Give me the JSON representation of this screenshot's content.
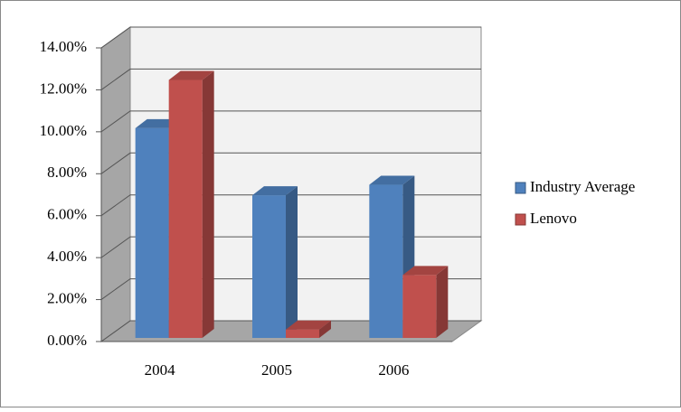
{
  "chart_data": {
    "type": "bar3d",
    "categories": [
      "2004",
      "2005",
      "2006"
    ],
    "series": [
      {
        "name": "Industry Average",
        "color": "#4f81bd",
        "values": [
          10.0,
          6.8,
          7.3
        ]
      },
      {
        "name": "Lenovo",
        "color": "#c0504d",
        "values": [
          12.3,
          0.4,
          3.0
        ]
      }
    ],
    "ylim": [
      0,
      14
    ],
    "yticks": [
      {
        "value": 0,
        "label": "0.00%"
      },
      {
        "value": 2,
        "label": "2.00%"
      },
      {
        "value": 4,
        "label": "4.00%"
      },
      {
        "value": 6,
        "label": "6.00%"
      },
      {
        "value": 8,
        "label": "8.00%"
      },
      {
        "value": 10,
        "label": "10.00%"
      },
      {
        "value": 12,
        "label": "12.00%"
      },
      {
        "value": 14,
        "label": "14.00%"
      }
    ],
    "grid": true,
    "legend": "right"
  }
}
